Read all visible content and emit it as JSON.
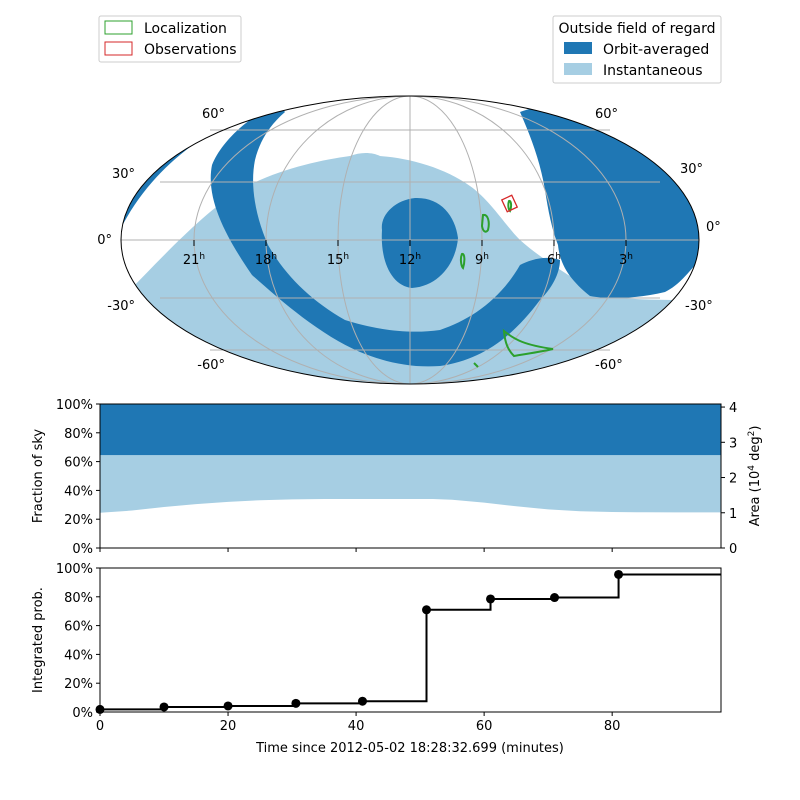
{
  "legend_left": {
    "entries": [
      {
        "label": "Localization",
        "color": "#2ca02c"
      },
      {
        "label": "Observations",
        "color": "#d62728"
      }
    ]
  },
  "legend_right": {
    "title": "Outside field of regard",
    "entries": [
      {
        "label": "Orbit-averaged",
        "color": "#1f77b4"
      },
      {
        "label": "Instantaneous",
        "color": "#a6cee3"
      }
    ]
  },
  "sky_map": {
    "projection": "mollweide",
    "lat_labels_left": [
      "60°",
      "30°",
      "0°",
      "-30°",
      "-60°"
    ],
    "lat_labels_right": [
      "60°",
      "30°",
      "0°",
      "-30°",
      "-60°"
    ],
    "ra_labels": [
      {
        "h": "21",
        "sup": "h"
      },
      {
        "h": "18",
        "sup": "h"
      },
      {
        "h": "15",
        "sup": "h"
      },
      {
        "h": "12",
        "sup": "h"
      },
      {
        "h": "9",
        "sup": "h"
      },
      {
        "h": "6",
        "sup": "h"
      },
      {
        "h": "3",
        "sup": "h"
      }
    ]
  },
  "chart_data": [
    {
      "type": "area",
      "name": "fraction-of-sky",
      "ylabel": "Fraction of sky",
      "ylabel_right": "Area (10",
      "ylabel_right_sup": "4",
      "ylabel_right_tail": " deg",
      "ylabel_right_sup2": "2",
      "ylabel_right_end": ")",
      "xlim": [
        0,
        97
      ],
      "ylim": [
        0,
        1
      ],
      "yticks": [
        "0%",
        "20%",
        "40%",
        "60%",
        "80%",
        "100%"
      ],
      "yticks_right": [
        "0",
        "1",
        "2",
        "3",
        "4"
      ],
      "series": [
        {
          "name": "Instantaneous",
          "color": "#a6cee3",
          "x": [
            0,
            5,
            10,
            15,
            20,
            25,
            30,
            35,
            40,
            45,
            50,
            52,
            55,
            60,
            65,
            70,
            75,
            80,
            85,
            90,
            97
          ],
          "lower": [
            0.245,
            0.26,
            0.285,
            0.305,
            0.32,
            0.332,
            0.338,
            0.34,
            0.34,
            0.34,
            0.34,
            0.34,
            0.335,
            0.315,
            0.29,
            0.268,
            0.255,
            0.25,
            0.248,
            0.247,
            0.247
          ],
          "upper": [
            0.645,
            0.645,
            0.645,
            0.645,
            0.645,
            0.645,
            0.645,
            0.645,
            0.645,
            0.645,
            0.645,
            0.645,
            0.645,
            0.645,
            0.645,
            0.645,
            0.645,
            0.645,
            0.645,
            0.645,
            0.645
          ]
        },
        {
          "name": "Orbit-averaged",
          "color": "#1f77b4",
          "x": [
            0,
            97
          ],
          "lower": [
            0.645,
            0.645
          ],
          "upper": [
            1.0,
            1.0
          ]
        }
      ]
    },
    {
      "type": "line",
      "name": "integrated-probability",
      "ylabel": "Integrated prob.",
      "xlabel": "Time since 2012-05-02 18:28:32.699 (minutes)",
      "xlim": [
        0,
        97
      ],
      "ylim": [
        0,
        1
      ],
      "xticks": [
        "0",
        "20",
        "40",
        "60",
        "80"
      ],
      "xtick_values": [
        0,
        20,
        40,
        60,
        80
      ],
      "yticks": [
        "0%",
        "20%",
        "40%",
        "60%",
        "80%",
        "100%"
      ],
      "series": [
        {
          "name": "Integrated prob.",
          "style": "step-post",
          "x": [
            0,
            10,
            20,
            30.6,
            41,
            51,
            61,
            71,
            81,
            97
          ],
          "y": [
            0.018,
            0.035,
            0.042,
            0.06,
            0.075,
            0.71,
            0.785,
            0.795,
            0.955,
            0.955
          ],
          "markers_x": [
            0,
            10,
            20,
            30.6,
            41,
            51,
            61,
            71,
            81
          ],
          "markers_y": [
            0.018,
            0.035,
            0.042,
            0.06,
            0.075,
            0.71,
            0.785,
            0.795,
            0.955
          ]
        }
      ]
    }
  ]
}
